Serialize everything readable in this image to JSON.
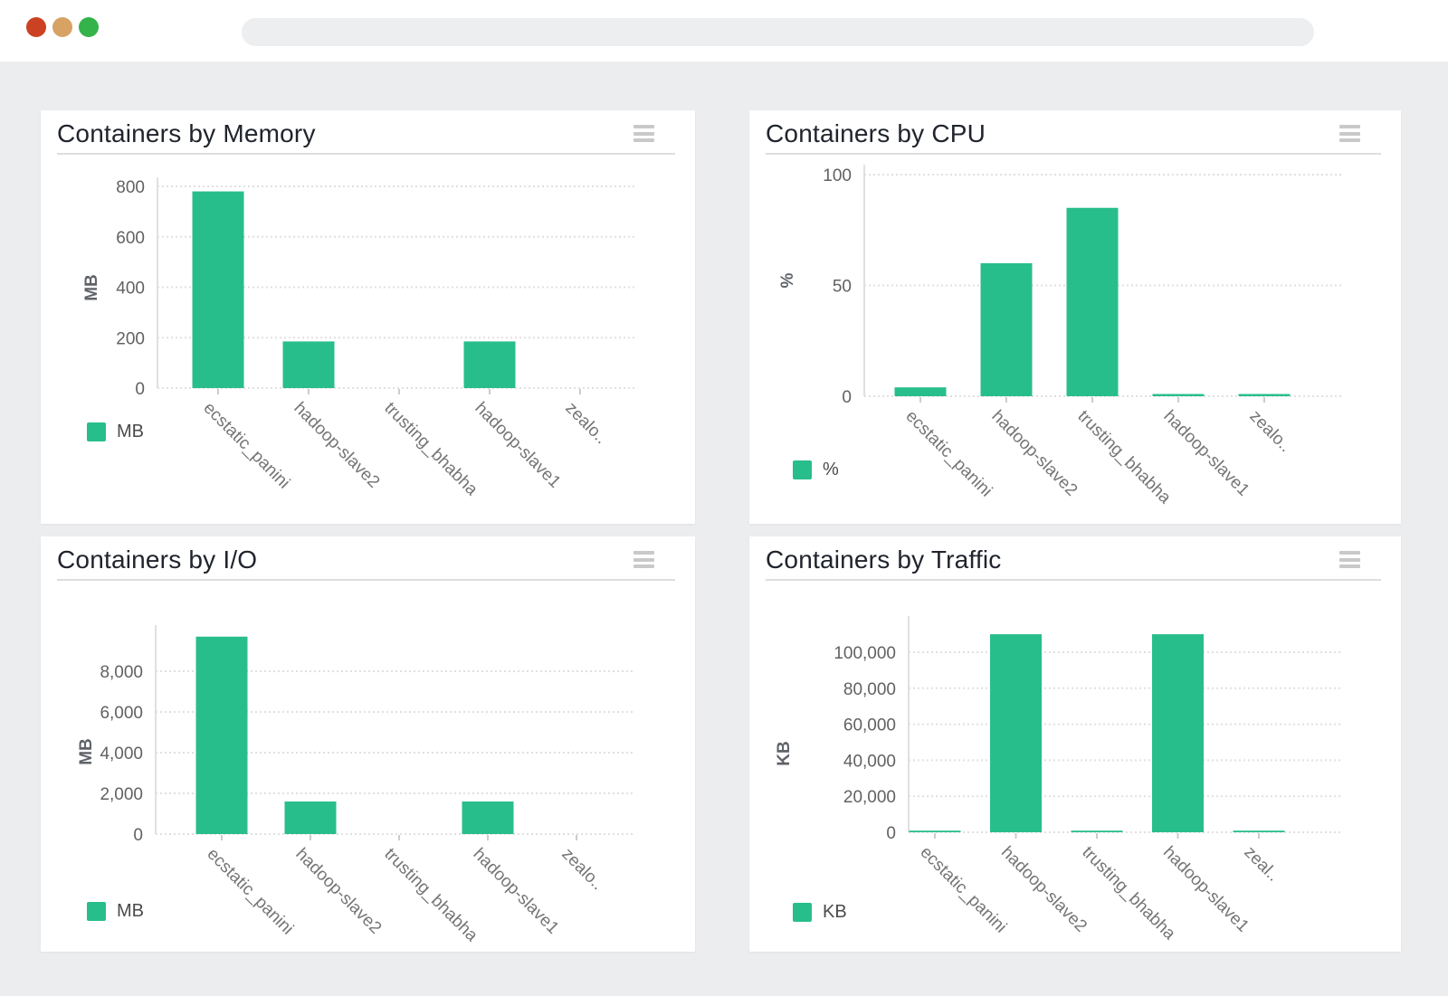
{
  "window": {
    "controls": [
      {
        "name": "close",
        "color": "#cb4222"
      },
      {
        "name": "minimize",
        "color": "#d8a264"
      },
      {
        "name": "maximize",
        "color": "#33b34a"
      }
    ],
    "address_bar_value": ""
  },
  "chart_data": [
    {
      "type": "bar",
      "title": "Containers by Memory",
      "categories": [
        "ecstatic_panini",
        "hadoop-slave2",
        "trusting_bhabha",
        "hadoop-slave1",
        "zealo.."
      ],
      "values": [
        780,
        185,
        0,
        185,
        0
      ],
      "ylabel": "MB",
      "legend": [
        "MB"
      ],
      "legend_position": "bottom-left",
      "yticks": [
        0,
        200,
        400,
        600,
        800
      ],
      "ylim": [
        0,
        800
      ],
      "grid": true,
      "bar_color": "#28be8c"
    },
    {
      "type": "bar",
      "title": "Containers by CPU",
      "categories": [
        "ecstatic_panini",
        "hadoop-slave2",
        "trusting_bhabha",
        "hadoop-slave1",
        "zealo.."
      ],
      "values": [
        4,
        60,
        85,
        1,
        1
      ],
      "ylabel": "%",
      "legend": [
        "%"
      ],
      "legend_position": "bottom-left",
      "yticks": [
        0,
        50,
        100
      ],
      "ylim": [
        0,
        100
      ],
      "grid": true,
      "bar_color": "#28be8c"
    },
    {
      "type": "bar",
      "title": "Containers by I/O",
      "categories": [
        "ecstatic_panini",
        "hadoop-slave2",
        "trusting_bhabha",
        "hadoop-slave1",
        "zealo.."
      ],
      "values": [
        9700,
        1600,
        0,
        1600,
        0
      ],
      "ylabel": "MB",
      "legend": [
        "MB"
      ],
      "legend_position": "bottom-left",
      "yticks": [
        0,
        2000,
        4000,
        6000,
        8000
      ],
      "ylim": [
        0,
        10200
      ],
      "grid": true,
      "bar_color": "#28be8c"
    },
    {
      "type": "bar",
      "title": "Containers by Traffic",
      "categories": [
        "ecstatic_panini",
        "hadoop-slave2",
        "trusting_bhabha",
        "hadoop-slave1",
        "zeal.."
      ],
      "values": [
        900,
        110000,
        900,
        110000,
        900
      ],
      "ylabel": "KB",
      "legend": [
        "KB"
      ],
      "legend_position": "bottom-left",
      "yticks": [
        0,
        20000,
        40000,
        60000,
        80000,
        100000
      ],
      "ylim": [
        0,
        113500
      ],
      "grid": true,
      "bar_color": "#28be8c"
    }
  ]
}
